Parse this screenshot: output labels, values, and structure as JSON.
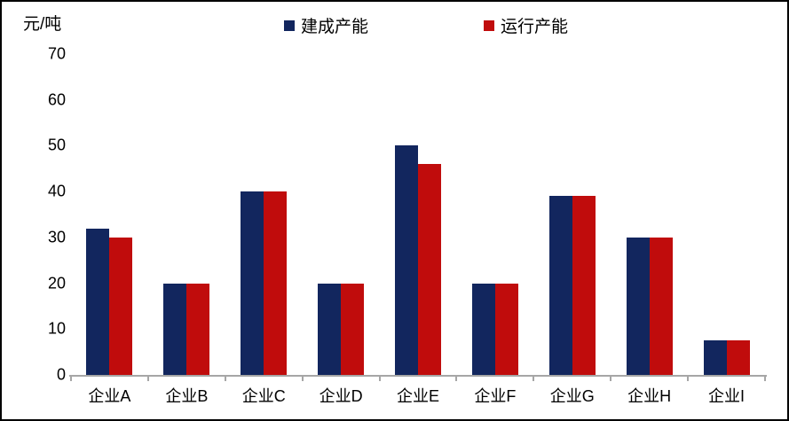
{
  "chart_data": {
    "type": "bar",
    "title": "",
    "unit_label": "元/吨",
    "xlabel": "",
    "ylabel": "元/吨",
    "categories": [
      "企业A",
      "企业B",
      "企业C",
      "企业D",
      "企业E",
      "企业F",
      "企业G",
      "企业H",
      "企业I"
    ],
    "series": [
      {
        "name": "建成产能",
        "color": "#12265E",
        "values": [
          32,
          20,
          40,
          20,
          50,
          20,
          39,
          30,
          7.5
        ]
      },
      {
        "name": "运行产能",
        "color": "#C00C0C",
        "values": [
          30,
          20,
          40,
          20,
          46,
          20,
          39,
          30,
          7.5
        ]
      }
    ],
    "ylim": [
      0,
      70
    ],
    "ytick_step": 10,
    "yticks": [
      0,
      10,
      20,
      30,
      40,
      50,
      60,
      70
    ],
    "grid": false,
    "legend_position": "top-center",
    "axis_color": "#A6A6A6",
    "text_color": "#000000"
  }
}
